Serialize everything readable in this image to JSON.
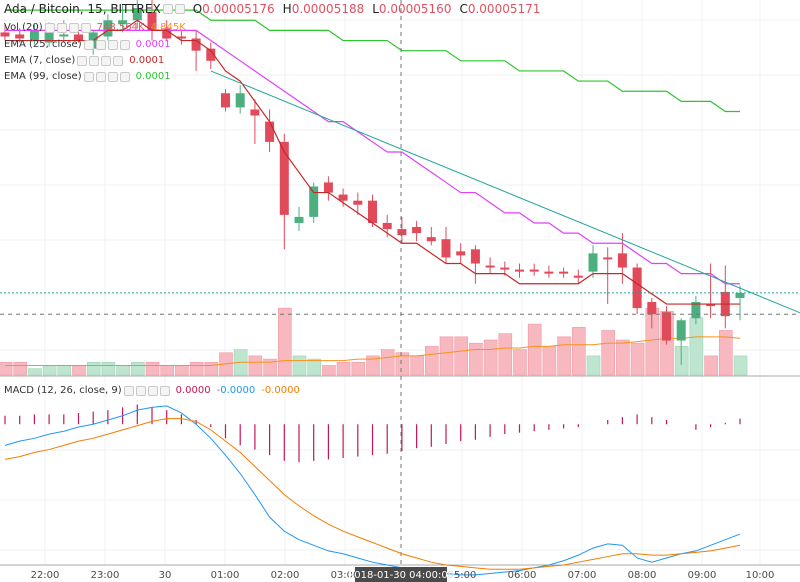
{
  "header": {
    "symbol": "Ada / Bitcoin, 15, BITTREX",
    "o_label": "O",
    "o": "0.00005176",
    "h_label": "H",
    "h": "0.00005188",
    "l_label": "L",
    "l": "0.00005160",
    "c_label": "C",
    "c": "0.00005171"
  },
  "legends": {
    "vol": {
      "label": "Vol (20)",
      "v1": "748.564K",
      "v2": "4.845K",
      "color1": "#e05260",
      "color2": "#f7931a"
    },
    "ema25": {
      "label": "EMA (25, close)",
      "value": "0.0001",
      "color": "#e040fb"
    },
    "ema7": {
      "label": "EMA (7, close)",
      "value": "0.0001",
      "color": "#c62828"
    },
    "ema99": {
      "label": "EMA (99, close)",
      "value": "0.0001",
      "color": "#2ec62e"
    },
    "macd": {
      "label": "MACD (12, 26, close, 9)",
      "v1": "0.0000",
      "v2": "-0.0000",
      "v3": "-0.0000",
      "c1": "#c2185b",
      "c2": "#2196f3",
      "c3": "#f57c00"
    }
  },
  "crosshair_label": "2018-01-30 04:00:00",
  "colors": {
    "up": "#4caf80",
    "down": "#e04a5a",
    "vol_up": "#bde5cf",
    "vol_down": "#f7b8bf",
    "macd_hist": "#c2185b",
    "macd_line": "#2196f3",
    "signal_line": "#f57c00",
    "grid": "#eef0f3",
    "trend": "#26a69a"
  },
  "chart_data": {
    "type": "candlestick",
    "x_ticks": [
      "22:00",
      "23:00",
      "30",
      "01:00",
      "02:00",
      "03:00",
      "05:00",
      "06:00",
      "07:00",
      "08:00",
      "09:00",
      "10:00"
    ],
    "price_ylim": [
      5.09e-05,
      5.46e-05
    ],
    "candles": [
      {
        "o": 5.428e-05,
        "h": 5.436e-05,
        "l": 5.42e-05,
        "c": 5.424e-05
      },
      {
        "o": 5.426e-05,
        "h": 5.432e-05,
        "l": 5.418e-05,
        "c": 5.422e-05
      },
      {
        "o": 5.42e-05,
        "h": 5.436e-05,
        "l": 5.416e-05,
        "c": 5.43e-05
      },
      {
        "o": 5.418e-05,
        "h": 5.438e-05,
        "l": 5.414e-05,
        "c": 5.428e-05
      },
      {
        "o": 5.424e-05,
        "h": 5.44e-05,
        "l": 5.418e-05,
        "c": 5.426e-05
      },
      {
        "o": 5.426e-05,
        "h": 5.434e-05,
        "l": 5.418e-05,
        "c": 5.42e-05
      },
      {
        "o": 5.412e-05,
        "h": 5.43e-05,
        "l": 5.406e-05,
        "c": 5.428e-05
      },
      {
        "o": 5.424e-05,
        "h": 5.446e-05,
        "l": 5.42e-05,
        "c": 5.44e-05
      },
      {
        "o": 5.436e-05,
        "h": 5.456e-05,
        "l": 5.428e-05,
        "c": 5.44e-05
      },
      {
        "o": 5.44e-05,
        "h": 5.466e-05,
        "l": 5.432e-05,
        "c": 5.452e-05
      },
      {
        "o": 5.448e-05,
        "h": 5.46e-05,
        "l": 5.42e-05,
        "c": 5.43e-05
      },
      {
        "o": 5.432e-05,
        "h": 5.44e-05,
        "l": 5.42e-05,
        "c": 5.422e-05
      },
      {
        "o": 5.424e-05,
        "h": 5.43e-05,
        "l": 5.416e-05,
        "c": 5.422e-05
      },
      {
        "o": 5.422e-05,
        "h": 5.43e-05,
        "l": 5.39e-05,
        "c": 5.41e-05
      },
      {
        "o": 5.412e-05,
        "h": 5.418e-05,
        "l": 5.392e-05,
        "c": 5.4e-05
      },
      {
        "o": 5.368e-05,
        "h": 5.372e-05,
        "l": 5.35e-05,
        "c": 5.354e-05
      },
      {
        "o": 5.354e-05,
        "h": 5.376e-05,
        "l": 5.348e-05,
        "c": 5.368e-05
      },
      {
        "o": 5.352e-05,
        "h": 5.362e-05,
        "l": 5.318e-05,
        "c": 5.346e-05
      },
      {
        "o": 5.34e-05,
        "h": 5.352e-05,
        "l": 5.31e-05,
        "c": 5.32e-05
      },
      {
        "o": 5.32e-05,
        "h": 5.328e-05,
        "l": 5.214e-05,
        "c": 5.248e-05
      },
      {
        "o": 5.24e-05,
        "h": 5.256e-05,
        "l": 5.232e-05,
        "c": 5.246e-05
      },
      {
        "o": 5.246e-05,
        "h": 5.28e-05,
        "l": 5.24e-05,
        "c": 5.276e-05
      },
      {
        "o": 5.28e-05,
        "h": 5.286e-05,
        "l": 5.262e-05,
        "c": 5.27e-05
      },
      {
        "o": 5.268e-05,
        "h": 5.274e-05,
        "l": 5.256e-05,
        "c": 5.262e-05
      },
      {
        "o": 5.262e-05,
        "h": 5.27e-05,
        "l": 5.248e-05,
        "c": 5.258e-05
      },
      {
        "o": 5.262e-05,
        "h": 5.268e-05,
        "l": 5.236e-05,
        "c": 5.24e-05
      },
      {
        "o": 5.24e-05,
        "h": 5.248e-05,
        "l": 5.226e-05,
        "c": 5.234e-05
      },
      {
        "o": 5.234e-05,
        "h": 5.246e-05,
        "l": 5.22e-05,
        "c": 5.228e-05
      },
      {
        "o": 5.236e-05,
        "h": 5.242e-05,
        "l": 5.222e-05,
        "c": 5.23e-05
      },
      {
        "o": 5.226e-05,
        "h": 5.236e-05,
        "l": 5.218e-05,
        "c": 5.222e-05
      },
      {
        "o": 5.224e-05,
        "h": 5.236e-05,
        "l": 5.2e-05,
        "c": 5.206e-05
      },
      {
        "o": 5.212e-05,
        "h": 5.22e-05,
        "l": 5.2e-05,
        "c": 5.208e-05
      },
      {
        "o": 5.214e-05,
        "h": 5.218e-05,
        "l": 5.18e-05,
        "c": 5.2e-05
      },
      {
        "o": 5.198e-05,
        "h": 5.206e-05,
        "l": 5.19e-05,
        "c": 5.196e-05
      },
      {
        "o": 5.196e-05,
        "h": 5.202e-05,
        "l": 5.188e-05,
        "c": 5.194e-05
      },
      {
        "o": 5.194e-05,
        "h": 5.2e-05,
        "l": 5.186e-05,
        "c": 5.192e-05
      },
      {
        "o": 5.194e-05,
        "h": 5.2e-05,
        "l": 5.188e-05,
        "c": 5.192e-05
      },
      {
        "o": 5.192e-05,
        "h": 5.198e-05,
        "l": 5.186e-05,
        "c": 5.19e-05
      },
      {
        "o": 5.192e-05,
        "h": 5.196e-05,
        "l": 5.186e-05,
        "c": 5.19e-05
      },
      {
        "o": 5.188e-05,
        "h": 5.194e-05,
        "l": 5.18e-05,
        "c": 5.186e-05
      },
      {
        "o": 5.192e-05,
        "h": 5.218e-05,
        "l": 5.186e-05,
        "c": 5.21e-05
      },
      {
        "o": 5.206e-05,
        "h": 5.216e-05,
        "l": 5.16e-05,
        "c": 5.204e-05
      },
      {
        "o": 5.21e-05,
        "h": 5.23e-05,
        "l": 5.18e-05,
        "c": 5.196e-05
      },
      {
        "o": 5.196e-05,
        "h": 5.2e-05,
        "l": 5.15e-05,
        "c": 5.156e-05
      },
      {
        "o": 5.162e-05,
        "h": 5.166e-05,
        "l": 5.136e-05,
        "c": 5.15e-05
      },
      {
        "o": 5.152e-05,
        "h": 5.158e-05,
        "l": 5.12e-05,
        "c": 5.124e-05
      },
      {
        "o": 5.124e-05,
        "h": 5.146e-05,
        "l": 5.1e-05,
        "c": 5.144e-05
      },
      {
        "o": 5.146e-05,
        "h": 5.168e-05,
        "l": 5.14e-05,
        "c": 5.162e-05
      },
      {
        "o": 5.16e-05,
        "h": 5.2e-05,
        "l": 5.146e-05,
        "c": 5.158e-05
      },
      {
        "o": 5.172e-05,
        "h": 5.198e-05,
        "l": 5.136e-05,
        "c": 5.148e-05
      },
      {
        "o": 5.166e-05,
        "h": 5.178e-05,
        "l": 5.144e-05,
        "c": 5.171e-05
      }
    ],
    "volume": [
      0.4,
      0.4,
      0.2,
      0.3,
      0.3,
      0.3,
      0.4,
      0.4,
      0.3,
      0.4,
      0.4,
      0.3,
      0.3,
      0.4,
      0.4,
      0.7,
      0.8,
      0.6,
      0.5,
      2.1,
      0.6,
      0.5,
      0.3,
      0.4,
      0.4,
      0.6,
      0.8,
      0.7,
      0.6,
      0.9,
      1.2,
      1.2,
      1.0,
      1.1,
      1.3,
      0.8,
      1.6,
      0.9,
      1.2,
      1.5,
      0.6,
      1.4,
      1.1,
      1.0,
      2.1,
      2.0,
      0.9,
      1.8,
      0.6,
      1.4,
      0.6
    ],
    "volume_ma": [
      0.3,
      0.3,
      0.3,
      0.3,
      0.3,
      0.3,
      0.3,
      0.3,
      0.3,
      0.3,
      0.3,
      0.3,
      0.3,
      0.3,
      0.3,
      0.35,
      0.4,
      0.4,
      0.4,
      0.45,
      0.45,
      0.45,
      0.45,
      0.45,
      0.5,
      0.5,
      0.55,
      0.6,
      0.6,
      0.65,
      0.7,
      0.75,
      0.8,
      0.8,
      0.85,
      0.85,
      0.9,
      0.9,
      0.95,
      0.95,
      0.95,
      1.0,
      1.0,
      1.05,
      1.1,
      1.15,
      1.15,
      1.2,
      1.2,
      1.2,
      1.15
    ],
    "ema7": [
      5.42e-05,
      5.42e-05,
      5.42e-05,
      5.42e-05,
      5.42e-05,
      5.42e-05,
      5.42e-05,
      5.43e-05,
      5.43e-05,
      5.44e-05,
      5.43e-05,
      5.43e-05,
      5.42e-05,
      5.42e-05,
      5.41e-05,
      5.39e-05,
      5.38e-05,
      5.36e-05,
      5.34e-05,
      5.31e-05,
      5.29e-05,
      5.27e-05,
      5.27e-05,
      5.26e-05,
      5.25e-05,
      5.24e-05,
      5.23e-05,
      5.22e-05,
      5.22e-05,
      5.21e-05,
      5.2e-05,
      5.2e-05,
      5.19e-05,
      5.19e-05,
      5.19e-05,
      5.18e-05,
      5.18e-05,
      5.18e-05,
      5.18e-05,
      5.18e-05,
      5.19e-05,
      5.19e-05,
      5.19e-05,
      5.18e-05,
      5.17e-05,
      5.16e-05,
      5.16e-05,
      5.16e-05,
      5.16e-05,
      5.16e-05,
      5.16e-05
    ],
    "ema25": [
      5.43e-05,
      5.43e-05,
      5.43e-05,
      5.43e-05,
      5.43e-05,
      5.43e-05,
      5.43e-05,
      5.43e-05,
      5.43e-05,
      5.43e-05,
      5.43e-05,
      5.43e-05,
      5.43e-05,
      5.43e-05,
      5.42e-05,
      5.41e-05,
      5.4e-05,
      5.39e-05,
      5.38e-05,
      5.37e-05,
      5.36e-05,
      5.35e-05,
      5.34e-05,
      5.34e-05,
      5.33e-05,
      5.32e-05,
      5.31e-05,
      5.31e-05,
      5.3e-05,
      5.29e-05,
      5.28e-05,
      5.27e-05,
      5.27e-05,
      5.26e-05,
      5.25e-05,
      5.25e-05,
      5.24e-05,
      5.24e-05,
      5.23e-05,
      5.23e-05,
      5.22e-05,
      5.22e-05,
      5.22e-05,
      5.21e-05,
      5.2e-05,
      5.2e-05,
      5.19e-05,
      5.19e-05,
      5.19e-05,
      5.18e-05,
      5.18e-05
    ],
    "ema99": [
      5.45e-05,
      5.45e-05,
      5.45e-05,
      5.45e-05,
      5.45e-05,
      5.45e-05,
      5.45e-05,
      5.45e-05,
      5.45e-05,
      5.45e-05,
      5.45e-05,
      5.45e-05,
      5.45e-05,
      5.45e-05,
      5.44e-05,
      5.44e-05,
      5.44e-05,
      5.44e-05,
      5.43e-05,
      5.43e-05,
      5.43e-05,
      5.43e-05,
      5.43e-05,
      5.42e-05,
      5.42e-05,
      5.42e-05,
      5.42e-05,
      5.41e-05,
      5.41e-05,
      5.41e-05,
      5.41e-05,
      5.4e-05,
      5.4e-05,
      5.4e-05,
      5.4e-05,
      5.39e-05,
      5.39e-05,
      5.39e-05,
      5.39e-05,
      5.38e-05,
      5.38e-05,
      5.38e-05,
      5.37e-05,
      5.37e-05,
      5.37e-05,
      5.37e-05,
      5.36e-05,
      5.36e-05,
      5.36e-05,
      5.35e-05,
      5.35e-05
    ],
    "trendline": {
      "from_index": 14,
      "from_price": 5.39e-05,
      "to_index": 56,
      "to_price": 5.14e-05
    },
    "macd": {
      "ylim": [
        -1.0,
        0.3
      ],
      "hist": [
        0.06,
        0.06,
        0.07,
        0.07,
        0.07,
        0.08,
        0.09,
        0.1,
        0.12,
        0.14,
        0.12,
        0.1,
        0.07,
        0.03,
        -0.02,
        -0.1,
        -0.15,
        -0.18,
        -0.22,
        -0.26,
        -0.27,
        -0.26,
        -0.25,
        -0.24,
        -0.23,
        -0.22,
        -0.21,
        -0.19,
        -0.17,
        -0.16,
        -0.14,
        -0.12,
        -0.11,
        -0.09,
        -0.07,
        -0.06,
        -0.05,
        -0.04,
        -0.03,
        -0.02,
        0.0,
        0.03,
        0.05,
        0.07,
        0.05,
        0.03,
        0.0,
        -0.04,
        -0.02,
        0.01,
        0.04
      ],
      "macd_line": [
        -0.15,
        -0.12,
        -0.1,
        -0.07,
        -0.05,
        -0.02,
        0.0,
        0.03,
        0.06,
        0.1,
        0.12,
        0.13,
        0.08,
        0.0,
        -0.1,
        -0.22,
        -0.35,
        -0.5,
        -0.66,
        -0.76,
        -0.82,
        -0.86,
        -0.9,
        -0.92,
        -0.95,
        -0.98,
        -1.0,
        -1.02,
        -1.04,
        -1.06,
        -1.06,
        -1.07,
        -1.07,
        -1.06,
        -1.05,
        -1.04,
        -1.02,
        -1.0,
        -0.97,
        -0.93,
        -0.88,
        -0.85,
        -0.86,
        -0.95,
        -0.98,
        -0.95,
        -0.92,
        -0.9,
        -0.86,
        -0.82,
        -0.78
      ],
      "signal_line": [
        -0.25,
        -0.23,
        -0.2,
        -0.18,
        -0.15,
        -0.12,
        -0.1,
        -0.07,
        -0.04,
        -0.01,
        0.02,
        0.04,
        0.04,
        0.02,
        -0.04,
        -0.12,
        -0.2,
        -0.3,
        -0.4,
        -0.5,
        -0.58,
        -0.65,
        -0.71,
        -0.76,
        -0.8,
        -0.84,
        -0.88,
        -0.92,
        -0.95,
        -0.98,
        -1.0,
        -1.01,
        -1.02,
        -1.03,
        -1.03,
        -1.03,
        -1.02,
        -1.01,
        -1.0,
        -0.98,
        -0.96,
        -0.94,
        -0.92,
        -0.92,
        -0.93,
        -0.93,
        -0.92,
        -0.91,
        -0.9,
        -0.88,
        -0.86
      ]
    }
  }
}
